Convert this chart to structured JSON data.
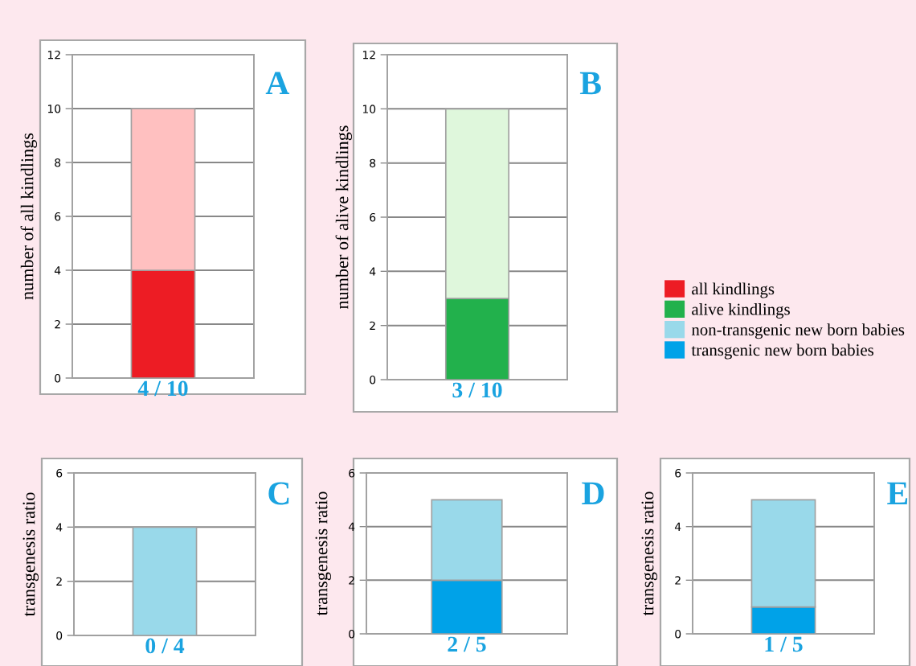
{
  "chart_data": [
    {
      "type": "bar",
      "stacked": true,
      "title": "A",
      "ylabel": "number of all kindlings",
      "categories": [
        "4 / 10"
      ],
      "ylim": [
        0,
        12
      ],
      "yticks": [
        0,
        2,
        4,
        6,
        8,
        10,
        12
      ],
      "grid": "y",
      "legend": "right",
      "series": [
        {
          "name": "all kindlings",
          "color": "#ed1c24",
          "values": [
            4
          ]
        },
        {
          "color": "#ffc0c0",
          "values": [
            6
          ]
        }
      ]
    },
    {
      "type": "bar",
      "stacked": true,
      "title": "B",
      "ylabel": "number of alive kindlings",
      "categories": [
        "3 / 10"
      ],
      "ylim": [
        0,
        12
      ],
      "yticks": [
        0,
        2,
        4,
        6,
        8,
        10,
        12
      ],
      "grid": "y",
      "legend": "right",
      "series": [
        {
          "name": "alive kindlings",
          "color": "#22b14c",
          "values": [
            3
          ]
        },
        {
          "color": "#dff7dc",
          "values": [
            7
          ]
        }
      ]
    },
    {
      "type": "bar",
      "stacked": true,
      "title": "C",
      "ylabel": "transgenesis ratio",
      "categories": [
        "0 / 4"
      ],
      "ylim": [
        0,
        6
      ],
      "yticks": [
        0,
        2,
        4,
        6
      ],
      "grid": "y",
      "legend": "right",
      "series": [
        {
          "name": "transgenic new born babies",
          "color": "#00a2e8",
          "values": [
            0
          ]
        },
        {
          "name": "non-transgenic new born babies",
          "color": "#99d9ea",
          "values": [
            4
          ]
        }
      ]
    },
    {
      "type": "bar",
      "stacked": true,
      "title": "D",
      "ylabel": "transgenesis ratio",
      "categories": [
        "2 / 5"
      ],
      "ylim": [
        0,
        6
      ],
      "yticks": [
        0,
        2,
        4,
        6
      ],
      "grid": "y",
      "legend": "right",
      "series": [
        {
          "color": "#00a2e8",
          "values": [
            2
          ]
        },
        {
          "color": "#99d9ea",
          "values": [
            3
          ]
        }
      ]
    },
    {
      "type": "bar",
      "stacked": true,
      "title": "E",
      "ylabel": "transgenesis ratio",
      "categories": [
        "1 / 5"
      ],
      "ylim": [
        0,
        6
      ],
      "yticks": [
        0,
        2,
        4,
        6
      ],
      "grid": "y",
      "legend": "right",
      "series": [
        {
          "color": "#00a2e8",
          "values": [
            1
          ]
        },
        {
          "color": "#99d9ea",
          "values": [
            4
          ]
        }
      ]
    }
  ]
}
